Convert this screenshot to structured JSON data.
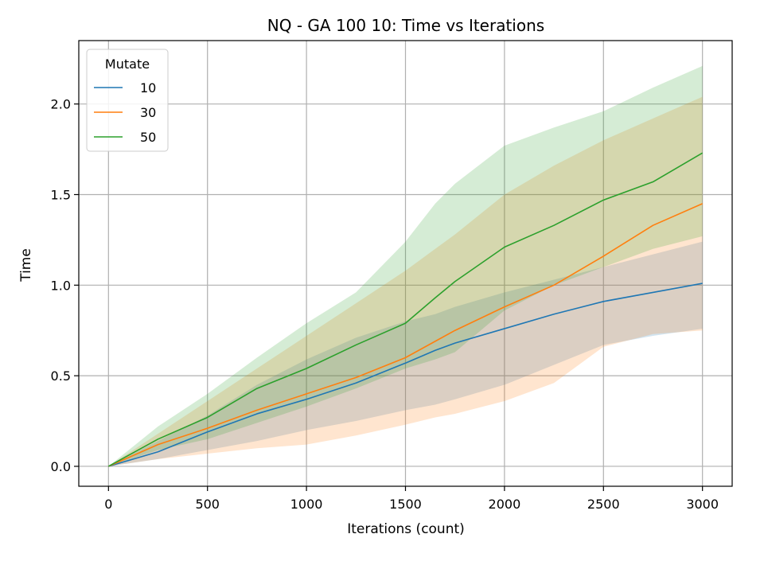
{
  "chart_data": {
    "type": "line",
    "title": "NQ - GA 100 10: Time vs Iterations",
    "xlabel": "Iterations (count)",
    "ylabel": "Time",
    "xlim": [
      -150,
      3150
    ],
    "ylim": [
      -0.11,
      2.35
    ],
    "xticks": [
      0,
      500,
      1000,
      1500,
      2000,
      2500,
      3000
    ],
    "yticks": [
      0.0,
      0.5,
      1.0,
      1.5,
      2.0
    ],
    "xtick_labels": [
      "0",
      "500",
      "1000",
      "1500",
      "2000",
      "2500",
      "3000"
    ],
    "ytick_labels": [
      "0.0",
      "0.5",
      "1.0",
      "1.5",
      "2.0"
    ],
    "grid": true,
    "legend": {
      "title": "Mutate",
      "placement": "top-left"
    },
    "x": [
      0,
      250,
      500,
      750,
      1000,
      1250,
      1500,
      1650,
      1750,
      2000,
      2250,
      2500,
      2750,
      3000
    ],
    "series": [
      {
        "name": "10",
        "color": "#1f77b4",
        "values": [
          0.0,
          0.08,
          0.19,
          0.29,
          0.37,
          0.46,
          0.57,
          0.64,
          0.68,
          0.76,
          0.84,
          0.91,
          0.96,
          1.01
        ],
        "lower": [
          0.0,
          0.04,
          0.09,
          0.14,
          0.2,
          0.25,
          0.31,
          0.34,
          0.37,
          0.45,
          0.56,
          0.67,
          0.72,
          0.76
        ],
        "upper": [
          0.0,
          0.14,
          0.28,
          0.45,
          0.59,
          0.71,
          0.8,
          0.84,
          0.88,
          0.96,
          1.03,
          1.1,
          1.17,
          1.24
        ]
      },
      {
        "name": "30",
        "color": "#ff7f0e",
        "values": [
          0.0,
          0.12,
          0.21,
          0.31,
          0.4,
          0.49,
          0.6,
          0.69,
          0.75,
          0.88,
          1.0,
          1.16,
          1.33,
          1.45
        ],
        "lower": [
          0.0,
          0.04,
          0.07,
          0.1,
          0.12,
          0.17,
          0.23,
          0.27,
          0.29,
          0.36,
          0.46,
          0.66,
          0.73,
          0.75
        ],
        "upper": [
          0.0,
          0.18,
          0.36,
          0.54,
          0.72,
          0.9,
          1.08,
          1.2,
          1.28,
          1.5,
          1.66,
          1.8,
          1.92,
          2.04
        ]
      },
      {
        "name": "50",
        "color": "#2ca02c",
        "values": [
          0.0,
          0.15,
          0.27,
          0.43,
          0.54,
          0.67,
          0.79,
          0.93,
          1.02,
          1.21,
          1.33,
          1.47,
          1.57,
          1.73
        ],
        "lower": [
          0.0,
          0.09,
          0.15,
          0.24,
          0.33,
          0.43,
          0.54,
          0.59,
          0.63,
          0.86,
          1.0,
          1.1,
          1.2,
          1.27
        ],
        "upper": [
          0.0,
          0.22,
          0.4,
          0.6,
          0.79,
          0.96,
          1.24,
          1.45,
          1.56,
          1.77,
          1.87,
          1.96,
          2.09,
          2.21
        ]
      }
    ]
  }
}
